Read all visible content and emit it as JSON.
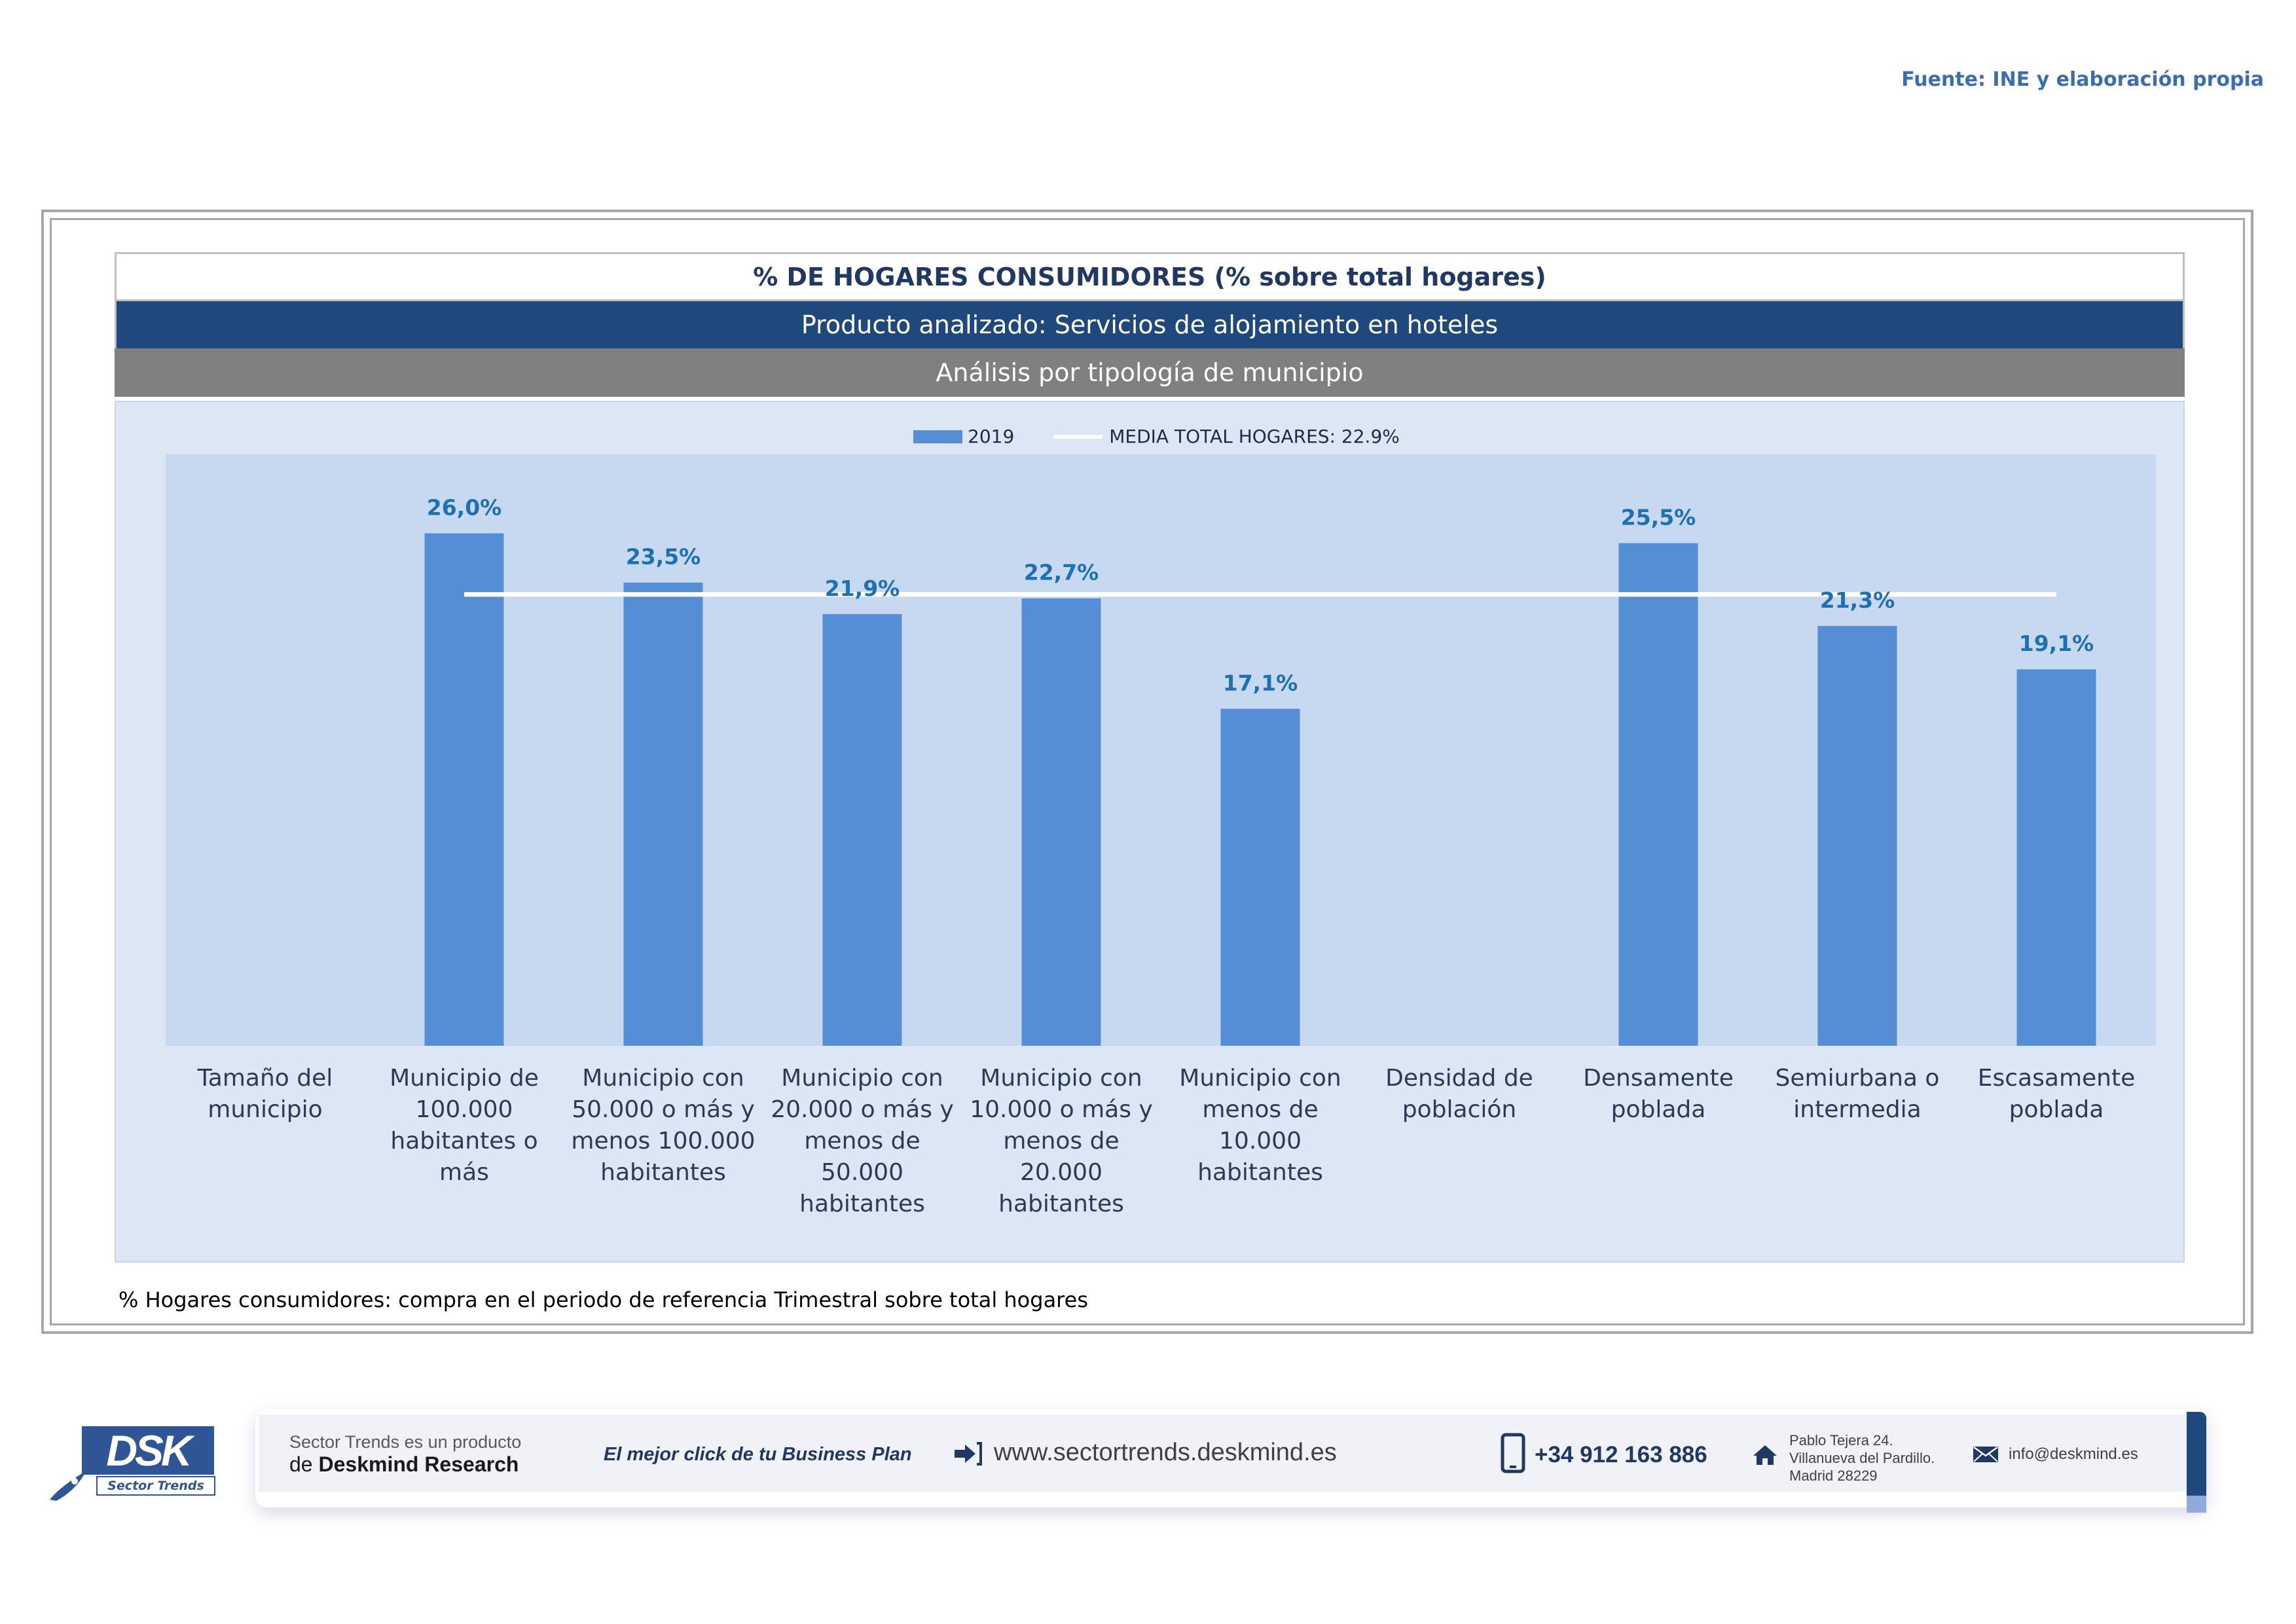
{
  "source": "Fuente: INE y elaboración propia",
  "header": {
    "title": "% DE HOGARES CONSUMIDORES (% sobre total hogares)",
    "product": "Producto analizado: Servicios de alojamiento en hoteles",
    "analysis": "Análisis por tipología de municipio"
  },
  "legend": {
    "series_label": "2019",
    "mean_label": "MEDIA TOTAL  HOGARES:  22.9%"
  },
  "chart_data": {
    "type": "bar",
    "categories": [
      [
        "Tamaño del",
        "municipio"
      ],
      [
        "Municipio de",
        "100.000",
        "habitantes o más"
      ],
      [
        "Municipio con",
        "50.000 o más y",
        "menos 100.000",
        "habitantes"
      ],
      [
        "Municipio con",
        "20.000 o más y",
        "menos de 50.000",
        "habitantes"
      ],
      [
        "Municipio con",
        "10.000 o más y",
        "menos de 20.000",
        "habitantes"
      ],
      [
        "Municipio con",
        "menos de 10.000",
        "habitantes"
      ],
      [
        "Densidad de",
        "población"
      ],
      [
        "Densamente",
        "poblada"
      ],
      [
        "Semiurbana o",
        "intermedia"
      ],
      [
        "Escasamente",
        "poblada"
      ]
    ],
    "series": [
      {
        "name": "2019",
        "values": [
          null,
          26.0,
          23.5,
          21.9,
          22.7,
          17.1,
          null,
          25.5,
          21.3,
          19.1
        ],
        "labels": [
          "",
          "26,0%",
          "23,5%",
          "21,9%",
          "22,7%",
          "17,1%",
          "",
          "25,5%",
          "21,3%",
          "19,1%"
        ],
        "color": "#558ed5"
      }
    ],
    "mean_line": {
      "name": "MEDIA TOTAL  HOGARES:  22.9%",
      "value": 22.9,
      "color": "#ffffff"
    },
    "ylim": [
      0,
      30
    ],
    "grid": false,
    "legend_position": "top",
    "label_color": "#1f6fb5"
  },
  "footnote": "% Hogares consumidores: compra en el periodo de referencia Trimestral sobre total hogares",
  "footer": {
    "logo_text": "DSK",
    "logo_subtitle": "Sector Trends",
    "tagline_line1": "Sector Trends es un producto",
    "tagline_prefix": "de",
    "tagline_company": "Deskmind Research",
    "slogan": "El mejor click de tu Business Plan",
    "url": "www.sectortrends.deskmind.es",
    "phone": "+34 912 163 886",
    "address_line1": "Pablo Tejera 24.",
    "address_line2": "Villanueva del Pardillo.",
    "address_line3": "Madrid 28229",
    "email": "info@deskmind.es",
    "icons": [
      "rocket-icon",
      "arrow-link-icon",
      "phone-icon",
      "home-icon",
      "envelope-icon"
    ]
  }
}
